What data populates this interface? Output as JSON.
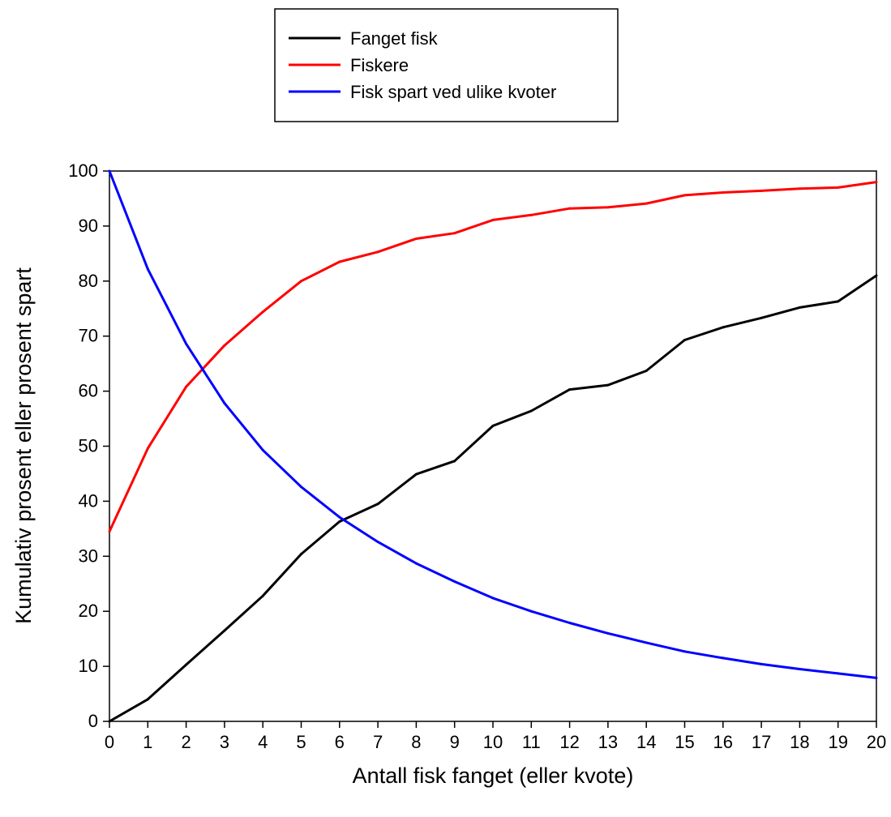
{
  "chart_data": {
    "type": "line",
    "title": "",
    "xlabel": "Antall fisk fanget (eller kvote)",
    "ylabel": "Kumulativ prosent eller prosent spart",
    "xlim": [
      0,
      20
    ],
    "ylim": [
      0,
      100
    ],
    "grid": false,
    "legend_position": "top-center",
    "x": [
      0,
      1,
      2,
      3,
      4,
      5,
      6,
      7,
      8,
      9,
      10,
      11,
      12,
      13,
      14,
      15,
      16,
      17,
      18,
      19,
      20
    ],
    "x_tick_labels": [
      "0",
      "1",
      "2",
      "3",
      "4",
      "5",
      "6",
      "7",
      "8",
      "9",
      "10",
      "11",
      "12",
      "13",
      "14",
      "15",
      "16",
      "17",
      "18",
      "19",
      "20"
    ],
    "y_tick_labels": [
      "0",
      "10",
      "20",
      "30",
      "40",
      "50",
      "60",
      "70",
      "80",
      "90",
      "100"
    ],
    "y_ticks": [
      0,
      10,
      20,
      30,
      40,
      50,
      60,
      70,
      80,
      90,
      100
    ],
    "series": [
      {
        "name": "Fanget fisk",
        "color": "#000000",
        "values": [
          0,
          4.0,
          10.3,
          16.5,
          22.8,
          30.4,
          36.3,
          39.5,
          44.9,
          47.3,
          53.7,
          56.4,
          60.3,
          61.1,
          63.7,
          69.3,
          71.6,
          73.3,
          75.2,
          76.3,
          81.0
        ]
      },
      {
        "name": "Fiskere",
        "color": "#ff0000",
        "values": [
          34.5,
          49.6,
          60.8,
          68.3,
          74.4,
          80.0,
          83.5,
          85.3,
          87.7,
          88.7,
          91.1,
          92.0,
          93.2,
          93.4,
          94.1,
          95.6,
          96.1,
          96.4,
          96.8,
          97.0,
          98.0
        ]
      },
      {
        "name": "Fisk spart ved ulike kvoter",
        "color": "#0000ff",
        "values": [
          100,
          82.2,
          68.6,
          57.8,
          49.3,
          42.6,
          37.1,
          32.6,
          28.7,
          25.4,
          22.4,
          20.0,
          17.9,
          16.0,
          14.3,
          12.7,
          11.5,
          10.4,
          9.5,
          8.7,
          7.9
        ]
      }
    ]
  }
}
